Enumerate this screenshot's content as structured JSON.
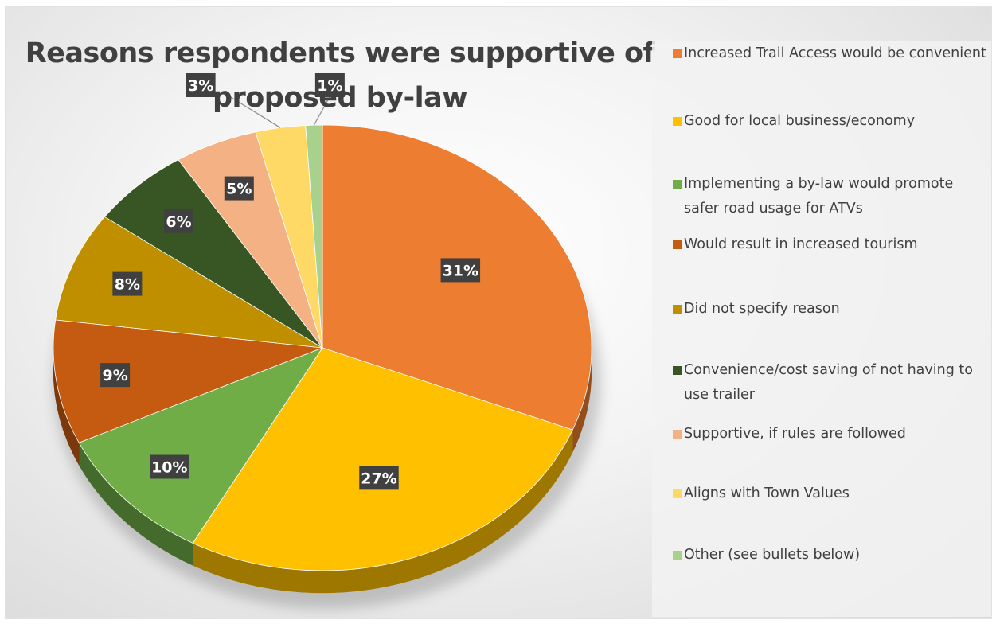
{
  "chart_data": {
    "type": "pie",
    "title": "Reasons respondents were supportive of proposed by-law",
    "legend_position": "right",
    "slices": [
      {
        "label": "Increased Trail Access would be convenient",
        "value": 31,
        "display": "31%",
        "color": "#ED7D31"
      },
      {
        "label": "Good for local business/economy",
        "value": 27,
        "display": "27%",
        "color": "#FFC000"
      },
      {
        "label": "Implementing a by-law would promote safer road usage for ATVs",
        "value": 10,
        "display": "10%",
        "color": "#70AD47"
      },
      {
        "label": "Would result in increased tourism",
        "value": 9,
        "display": "9%",
        "color": "#C55A11"
      },
      {
        "label": "Did not specify reason",
        "value": 8,
        "display": "8%",
        "color": "#BF8F00"
      },
      {
        "label": "Convenience/cost saving of not having to use trailer",
        "value": 6,
        "display": "6%",
        "color": "#375623"
      },
      {
        "label": "Supportive, if rules are followed",
        "value": 5,
        "display": "5%",
        "color": "#F4B183"
      },
      {
        "label": "Aligns with Town Values",
        "value": 3,
        "display": "3%",
        "color": "#FFD966"
      },
      {
        "label": "Other (see bullets below)",
        "value": 1,
        "display": "1%",
        "color": "#A9D18E"
      }
    ]
  }
}
